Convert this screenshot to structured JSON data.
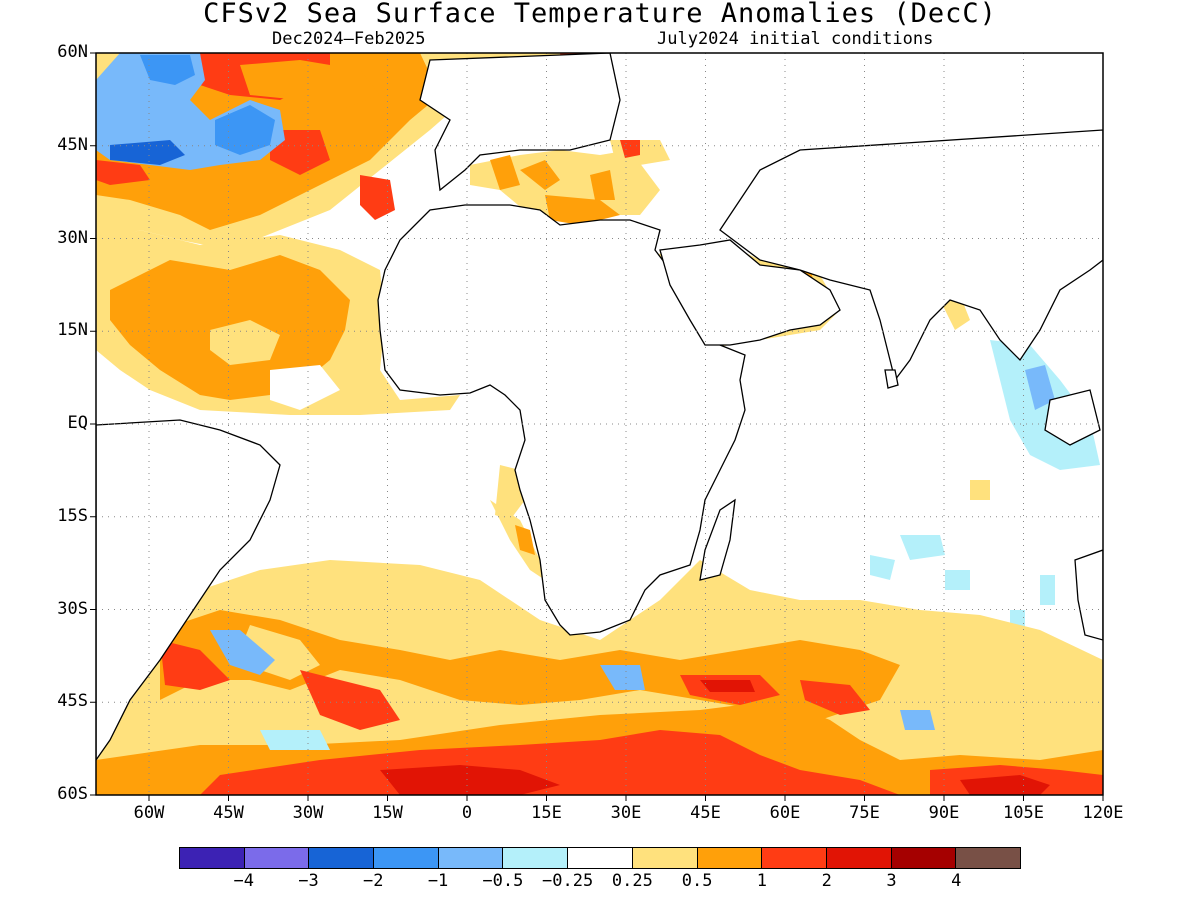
{
  "title": "CFSv2 Sea Surface Temperature Anomalies (DecC)",
  "subtitle_left": "Dec2024–Feb2025",
  "subtitle_right": "July2024 initial conditions",
  "map": {
    "projection": "equirectangular",
    "lon_range": [
      -70,
      120
    ],
    "lat_range": [
      -60,
      60
    ],
    "grid": "dotted",
    "lat_ticks": [
      "60N",
      "45N",
      "30N",
      "15N",
      "EQ",
      "15S",
      "30S",
      "45S",
      "60S"
    ],
    "lat_values": [
      60,
      45,
      30,
      15,
      0,
      -15,
      -30,
      -45,
      -60
    ],
    "lon_ticks": [
      "60W",
      "45W",
      "30W",
      "15W",
      "0",
      "15E",
      "30E",
      "45E",
      "60E",
      "75E",
      "90E",
      "105E",
      "120E"
    ],
    "lon_values": [
      -60,
      -45,
      -30,
      -15,
      0,
      15,
      30,
      45,
      60,
      75,
      90,
      105,
      120
    ]
  },
  "colorbar": {
    "colors": [
      "#3c22b4",
      "#7b6bea",
      "#1764d6",
      "#3c96f5",
      "#78b9fa",
      "#b4f0fa",
      "#ffffff",
      "#ffe17d",
      "#ffa00a",
      "#ff3c14",
      "#e11405",
      "#a50000",
      "#785046"
    ],
    "labels": [
      "−4",
      "−3",
      "−2",
      "−1",
      "−0.5",
      "−0.25",
      "0.25",
      "0.5",
      "1",
      "2",
      "3",
      "4"
    ]
  }
}
